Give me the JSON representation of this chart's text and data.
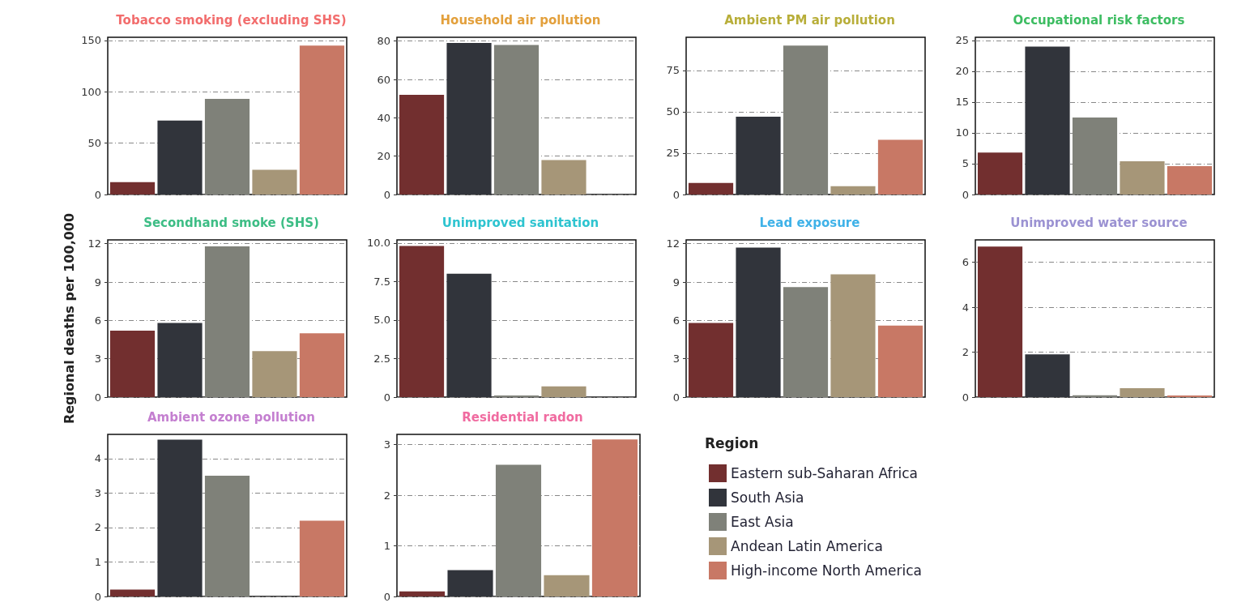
{
  "chart_data": [
    {
      "type": "bar",
      "title": "Tobacco smoking (excluding SHS)",
      "categories": [
        null
      ],
      "ylim": [
        0,
        153
      ],
      "yticks": [
        0,
        50,
        100,
        150
      ],
      "grid": "y",
      "tick_labels": "y",
      "series": [
        {
          "color": "#722f2f",
          "values": [
            12
          ]
        },
        {
          "color": "#31343b",
          "values": [
            72
          ]
        },
        {
          "color": "#7f8179",
          "values": [
            93
          ]
        },
        {
          "color": "#a69678",
          "values": [
            24
          ]
        },
        {
          "color": "#c87865",
          "values": [
            145
          ]
        }
      ]
    },
    {
      "type": "bar",
      "title": "Household air pollution",
      "categories": [
        null
      ],
      "ylim": [
        0,
        82
      ],
      "yticks": [
        0,
        20,
        40,
        60,
        80
      ],
      "grid": "y",
      "tick_labels": "y",
      "series": [
        {
          "color": "#722f2f",
          "values": [
            52
          ]
        },
        {
          "color": "#31343b",
          "values": [
            79
          ]
        },
        {
          "color": "#7f8179",
          "values": [
            78
          ]
        },
        {
          "color": "#a69678",
          "values": [
            18
          ]
        },
        {
          "color": "#c87865",
          "values": [
            0
          ]
        }
      ]
    },
    {
      "type": "bar",
      "title": "Ambient PM air pollution",
      "categories": [
        null
      ],
      "ylim": [
        0,
        95
      ],
      "yticks": [
        0,
        25,
        50,
        75
      ],
      "grid": "y",
      "tick_labels": "y",
      "series": [
        {
          "color": "#722f2f",
          "values": [
            7
          ]
        },
        {
          "color": "#31343b",
          "values": [
            47
          ]
        },
        {
          "color": "#7f8179",
          "values": [
            90
          ]
        },
        {
          "color": "#a69678",
          "values": [
            5
          ]
        },
        {
          "color": "#c87865",
          "values": [
            33
          ]
        }
      ]
    },
    {
      "type": "bar",
      "title": "Occupational risk factors",
      "categories": [
        null
      ],
      "ylim": [
        0,
        25.5
      ],
      "yticks": [
        0,
        5,
        10,
        15,
        20,
        25
      ],
      "grid": "y",
      "tick_labels": "y",
      "series": [
        {
          "color": "#722f2f",
          "values": [
            6.8
          ]
        },
        {
          "color": "#31343b",
          "values": [
            24
          ]
        },
        {
          "color": "#7f8179",
          "values": [
            12.5
          ]
        },
        {
          "color": "#a69678",
          "values": [
            5.4
          ]
        },
        {
          "color": "#c87865",
          "values": [
            4.6
          ]
        }
      ]
    },
    {
      "type": "bar",
      "title": "Secondhand smoke (SHS)",
      "ylabel": "Regional deaths per 100,000",
      "categories": [
        null
      ],
      "ylim": [
        0,
        12.3
      ],
      "yticks": [
        0,
        3,
        6,
        9,
        12
      ],
      "grid": "y",
      "tick_labels": "y",
      "series": [
        {
          "color": "#722f2f",
          "values": [
            5.2
          ]
        },
        {
          "color": "#31343b",
          "values": [
            5.8
          ]
        },
        {
          "color": "#7f8179",
          "values": [
            11.8
          ]
        },
        {
          "color": "#a69678",
          "values": [
            3.6
          ]
        },
        {
          "color": "#c87865",
          "values": [
            5.0
          ]
        }
      ]
    },
    {
      "type": "bar",
      "title": "Unimproved sanitation",
      "categories": [
        null
      ],
      "ylim": [
        0,
        10.2
      ],
      "yticks": [
        0,
        2.5,
        {
          "value": 5,
          "label": "5.0"
        },
        7.5,
        {
          "value": 10,
          "label": "10.0"
        }
      ],
      "grid": "y",
      "tick_labels": "y",
      "series": [
        {
          "color": "#722f2f",
          "values": [
            9.8
          ]
        },
        {
          "color": "#31343b",
          "values": [
            8.0
          ]
        },
        {
          "color": "#7f8179",
          "values": [
            0.1
          ]
        },
        {
          "color": "#a69678",
          "values": [
            0.7
          ]
        },
        {
          "color": "#c87865",
          "values": [
            0
          ]
        }
      ]
    },
    {
      "type": "bar",
      "title": "Lead exposure",
      "categories": [
        null
      ],
      "ylim": [
        0,
        12.3
      ],
      "yticks": [
        0,
        3,
        6,
        9,
        12
      ],
      "grid": "y",
      "tick_labels": "y",
      "series": [
        {
          "color": "#722f2f",
          "values": [
            5.8
          ]
        },
        {
          "color": "#31343b",
          "values": [
            11.7
          ]
        },
        {
          "color": "#7f8179",
          "values": [
            8.6
          ]
        },
        {
          "color": "#a69678",
          "values": [
            9.6
          ]
        },
        {
          "color": "#c87865",
          "values": [
            5.6
          ]
        }
      ]
    },
    {
      "type": "bar",
      "title": "Unimproved water source",
      "categories": [
        null
      ],
      "ylim": [
        0,
        7
      ],
      "yticks": [
        0,
        2,
        4,
        6
      ],
      "grid": "y",
      "tick_labels": "y",
      "series": [
        {
          "color": "#722f2f",
          "values": [
            6.7
          ]
        },
        {
          "color": "#31343b",
          "values": [
            1.9
          ]
        },
        {
          "color": "#7f8179",
          "values": [
            0.08
          ]
        },
        {
          "color": "#a69678",
          "values": [
            0.4
          ]
        },
        {
          "color": "#c87865",
          "values": [
            0.07
          ]
        }
      ]
    },
    {
      "type": "bar",
      "title": "Ambient ozone pollution",
      "categories": [
        null
      ],
      "ylim": [
        0,
        4.7
      ],
      "yticks": [
        0,
        1,
        2,
        3,
        4
      ],
      "grid": "y",
      "tick_labels": "y",
      "series": [
        {
          "color": "#722f2f",
          "values": [
            0.2
          ]
        },
        {
          "color": "#31343b",
          "values": [
            4.55
          ]
        },
        {
          "color": "#7f8179",
          "values": [
            3.5
          ]
        },
        {
          "color": "#a69678",
          "values": [
            0
          ]
        },
        {
          "color": "#c87865",
          "values": [
            2.2
          ]
        }
      ]
    },
    {
      "type": "bar",
      "title": "Residential radon",
      "categories": [
        null
      ],
      "ylim": [
        0,
        3.2
      ],
      "yticks": [
        0,
        1,
        2,
        3
      ],
      "grid": "y",
      "tick_labels": "y",
      "legend": "right",
      "legend_title": "Region",
      "series": [
        {
          "name": "Eastern sub-Saharan Africa",
          "color": "#722f2f",
          "values": [
            0.1
          ]
        },
        {
          "name": "South Asia",
          "color": "#31343b",
          "values": [
            0.52
          ]
        },
        {
          "name": "East Asia",
          "color": "#7f8179",
          "values": [
            2.6
          ]
        },
        {
          "name": "Andean Latin America",
          "color": "#a69678",
          "values": [
            0.42
          ]
        },
        {
          "name": "High-income North America",
          "color": "#c87865",
          "values": [
            3.1
          ]
        }
      ]
    }
  ]
}
